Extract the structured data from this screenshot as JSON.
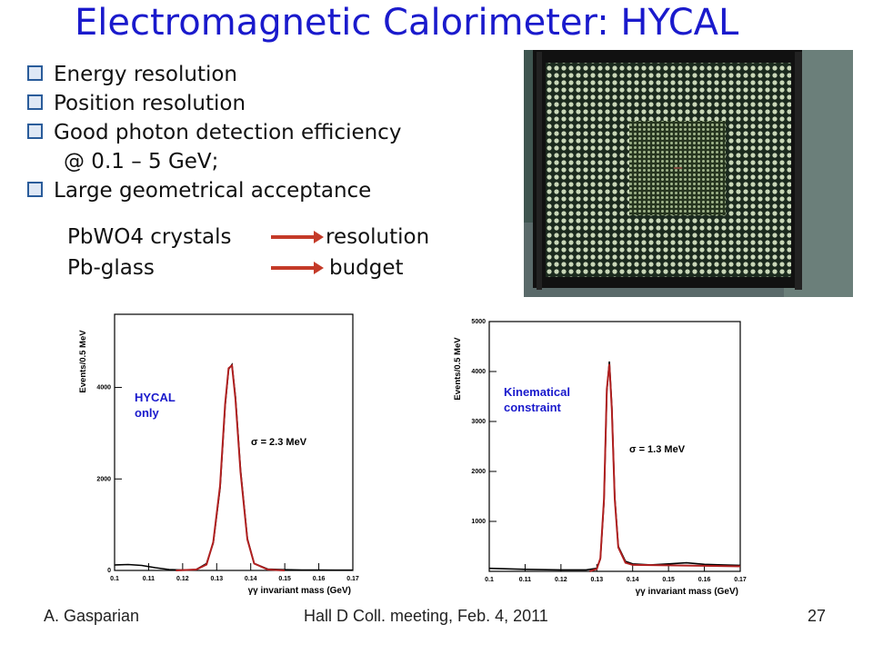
{
  "title": "Electromagnetic Calorimeter: HYCAL",
  "bullets": [
    {
      "text": "Energy resolution",
      "mark": true
    },
    {
      "text": "Position resolution",
      "mark": true
    },
    {
      "text": "Good photon detection efficiency",
      "mark": true
    },
    {
      "text": "@ 0.1 – 5 GeV;",
      "mark": false
    },
    {
      "text": "Large geometrical acceptance",
      "mark": true
    }
  ],
  "comparison": [
    {
      "left": "PbWO4 crystals",
      "right": "resolution"
    },
    {
      "left": "Pb-glass",
      "right": "budget"
    }
  ],
  "photo": {
    "subject": "HYCAL calorimeter detector array in frame"
  },
  "footer": {
    "author": "A. Gasparian",
    "meeting": "Hall D Coll. meeting, Feb. 4, 2011",
    "page": "27"
  },
  "colors": {
    "title": "#1a1acc",
    "arrow": "#c43a28",
    "annotation": "#1a1acc",
    "fit": "#b02020"
  },
  "chart_data": [
    {
      "type": "line",
      "ylabel": "Events/0.5 MeV",
      "xlabel": "γγ invariant mass (GeV)",
      "annotation": [
        "HYCAL",
        "only"
      ],
      "sigma_label": "σ = 2.3 MeV",
      "xlim": [
        0.1,
        0.17
      ],
      "ylim": [
        0,
        5600
      ],
      "x_ticks": [
        "0.1",
        "0.11",
        "0.12",
        "0.13",
        "0.14",
        "0.15",
        "0.16",
        "0.17"
      ],
      "y_ticks": [
        {
          "label": "0",
          "value": 0
        },
        {
          "label": "2000",
          "value": 2000
        },
        {
          "label": "4000",
          "value": 4000
        }
      ],
      "series": [
        {
          "values": [
            [
              0.1,
              120
            ],
            [
              0.104,
              130
            ],
            [
              0.108,
              110
            ],
            [
              0.112,
              60
            ],
            [
              0.116,
              20
            ],
            [
              0.12,
              10
            ],
            [
              0.124,
              20
            ],
            [
              0.127,
              150
            ],
            [
              0.129,
              600
            ],
            [
              0.131,
              1800
            ],
            [
              0.1325,
              3600
            ],
            [
              0.1335,
              4400
            ],
            [
              0.1345,
              4500
            ],
            [
              0.1355,
              3800
            ],
            [
              0.137,
              2200
            ],
            [
              0.139,
              700
            ],
            [
              0.141,
              150
            ],
            [
              0.145,
              30
            ],
            [
              0.15,
              15
            ],
            [
              0.155,
              10
            ],
            [
              0.16,
              10
            ],
            [
              0.165,
              5
            ],
            [
              0.17,
              5
            ]
          ]
        },
        {
          "values": [
            [
              0.118,
              0
            ],
            [
              0.124,
              20
            ],
            [
              0.127,
              130
            ],
            [
              0.129,
              620
            ],
            [
              0.131,
              1850
            ],
            [
              0.1325,
              3650
            ],
            [
              0.1335,
              4420
            ],
            [
              0.1345,
              4480
            ],
            [
              0.1355,
              3750
            ],
            [
              0.137,
              2150
            ],
            [
              0.139,
              680
            ],
            [
              0.141,
              150
            ],
            [
              0.145,
              20
            ],
            [
              0.15,
              0
            ]
          ]
        }
      ]
    },
    {
      "type": "line",
      "ylabel": "Events/0.5 MeV",
      "xlabel": "γγ invariant mass (GeV)",
      "annotation": [
        "Kinematical",
        "constraint"
      ],
      "sigma_label": "σ = 1.3 MeV",
      "xlim": [
        0.1,
        0.17
      ],
      "ylim": [
        0,
        5000
      ],
      "x_ticks": [
        "0.1",
        "0.11",
        "0.12",
        "0.13",
        "0.14",
        "0.15",
        "0.16",
        "0.17"
      ],
      "y_ticks": [
        {
          "label": "1000",
          "value": 1000
        },
        {
          "label": "2000",
          "value": 2000
        },
        {
          "label": "3000",
          "value": 3000
        },
        {
          "label": "4000",
          "value": 4000
        },
        {
          "label": "5000",
          "value": 5000
        }
      ],
      "series": [
        {
          "values": [
            [
              0.1,
              60
            ],
            [
              0.11,
              40
            ],
            [
              0.12,
              30
            ],
            [
              0.127,
              30
            ],
            [
              0.13,
              60
            ],
            [
              0.131,
              250
            ],
            [
              0.132,
              1400
            ],
            [
              0.1328,
              3600
            ],
            [
              0.1335,
              4200
            ],
            [
              0.1342,
              3300
            ],
            [
              0.135,
              1500
            ],
            [
              0.136,
              500
            ],
            [
              0.138,
              200
            ],
            [
              0.14,
              150
            ],
            [
              0.145,
              130
            ],
            [
              0.15,
              150
            ],
            [
              0.155,
              170
            ],
            [
              0.16,
              140
            ],
            [
              0.165,
              130
            ],
            [
              0.17,
              120
            ]
          ]
        },
        {
          "values": [
            [
              0.128,
              0
            ],
            [
              0.13,
              50
            ],
            [
              0.131,
              260
            ],
            [
              0.132,
              1450
            ],
            [
              0.1328,
              3650
            ],
            [
              0.1335,
              4150
            ],
            [
              0.1342,
              3250
            ],
            [
              0.135,
              1450
            ],
            [
              0.136,
              480
            ],
            [
              0.138,
              170
            ],
            [
              0.14,
              130
            ],
            [
              0.15,
              120
            ],
            [
              0.16,
              110
            ],
            [
              0.17,
              100
            ]
          ]
        }
      ]
    }
  ]
}
